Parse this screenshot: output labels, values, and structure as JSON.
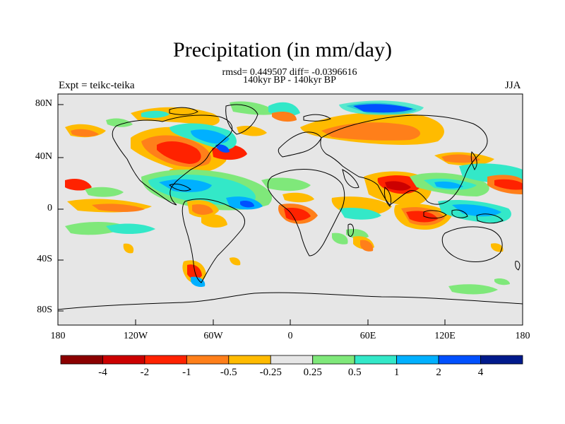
{
  "header": {
    "title": "Precipitation (in mm/day)",
    "stats": "rmsd= 0.449507 diff= -0.0396616",
    "period": "140kyr BP - 140kyr BP",
    "experiment": "Expt = teikc-teika",
    "season": "JJA"
  },
  "axes": {
    "lat_labels": [
      "80N",
      "40N",
      "0",
      "40S",
      "80S"
    ],
    "lon_labels": [
      "180",
      "120W",
      "60W",
      "0",
      "60E",
      "120E",
      "180"
    ]
  },
  "colorbar": {
    "labels": [
      "-4",
      "-2",
      "-1",
      "-0.5",
      "-0.25",
      "0.25",
      "0.5",
      "1",
      "2",
      "4"
    ],
    "colors": [
      "#8b0000",
      "#cc0000",
      "#ff2200",
      "#ff7f1a",
      "#ffbb00",
      "#e6e6e6",
      "#7fe87a",
      "#33e8c8",
      "#00b0ff",
      "#0050ff",
      "#001a8c"
    ]
  }
}
